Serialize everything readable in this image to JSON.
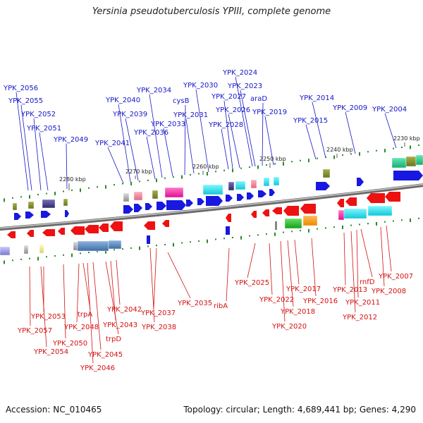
{
  "title": "Yersinia pseudotuberculosis YPIII, complete genome",
  "footer": {
    "accession": "Accession: NC_010465",
    "info": "Topology: circular; Length: 4,689,441 bp; Genes: 4,290"
  },
  "colors": {
    "forward_label": "#1515c8",
    "reverse_label": "#d41010",
    "forward_gene": "#1818e0",
    "reverse_gene": "#ee1111",
    "backbone": "#8a8a8a",
    "dot": "#2a8a2a"
  },
  "coordinate_ticks": [
    "2280 kbp",
    "2270 kbp",
    "2260 kbp",
    "2250 kbp",
    "2240 kbp",
    "2230 kbp"
  ],
  "forward_genes": [
    "YPK_2056",
    "YPK_2055",
    "YPK_2052",
    "YPK_2051",
    "YPK_2049",
    "YPK_2041",
    "YPK_2040",
    "YPK_2039",
    "YPK_2036",
    "YPK_2034",
    "YPK_2033",
    "cysB",
    "YPK_2031",
    "YPK_2030",
    "YPK_2028",
    "YPK_2027",
    "YPK_2026",
    "YPK_2024",
    "YPK_2023",
    "araD",
    "YPK_2019",
    "YPK_2015",
    "YPK_2014",
    "YPK_2009",
    "YPK_2004"
  ],
  "reverse_genes": [
    "YPK_2053",
    "YPK_2057",
    "YPK_2054",
    "YPK_2050",
    "YPK_2048",
    "trpA",
    "YPK_2046",
    "YPK_2045",
    "trpD",
    "YPK_2043",
    "YPK_2042",
    "YPK_2038",
    "YPK_2037",
    "YPK_2035",
    "ribA",
    "YPK_2025",
    "YPK_2022",
    "YPK_2020",
    "YPK_2018",
    "YPK_2017",
    "YPK_2016",
    "YPK_2013",
    "YPK_2012",
    "YPK_2011",
    "rnfD",
    "YPK_2008",
    "YPK_2007"
  ]
}
